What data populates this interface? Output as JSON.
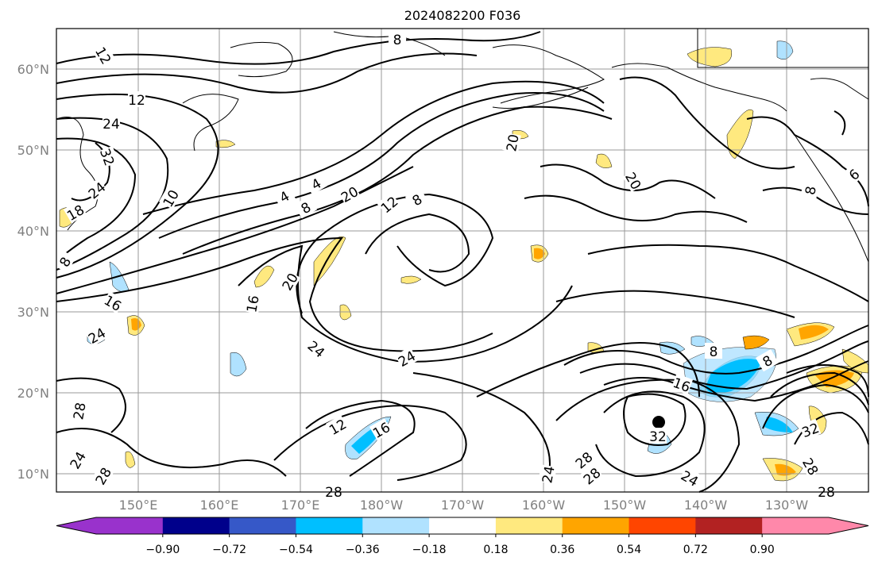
{
  "title": "2024082200 F036",
  "map": {
    "lat_ticks": [
      "60°N",
      "50°N",
      "40°N",
      "30°N",
      "20°N",
      "10°N"
    ],
    "lon_ticks": [
      "150°E",
      "160°E",
      "170°E",
      "180°W",
      "170°W",
      "160°W",
      "150°W",
      "140°W",
      "130°W"
    ],
    "contour_labels": [
      "8",
      "12",
      "12",
      "24",
      "32",
      "24",
      "18",
      "8",
      "10",
      "4",
      "4",
      "8",
      "20",
      "12",
      "8",
      "20",
      "16",
      "16",
      "20",
      "24",
      "24",
      "24",
      "12",
      "16",
      "28",
      "24",
      "28",
      "28",
      "28",
      "24",
      "28",
      "24",
      "32",
      "8",
      "16",
      "8",
      "32",
      "28",
      "20",
      "6",
      "8",
      "28"
    ]
  },
  "colorbar": {
    "ticks": [
      "−0.90",
      "−0.72",
      "−0.54",
      "−0.36",
      "−0.18",
      "0.18",
      "0.36",
      "0.54",
      "0.72",
      "0.90"
    ],
    "colors": [
      "#9932cc",
      "#9932cc",
      "#00008b",
      "#3658c8",
      "#00bfff",
      "#b0e2ff",
      "#ffffff",
      "#ffe97f",
      "#ffa500",
      "#ff4500",
      "#b22222",
      "#ff88aa",
      "#ff88aa"
    ]
  }
}
